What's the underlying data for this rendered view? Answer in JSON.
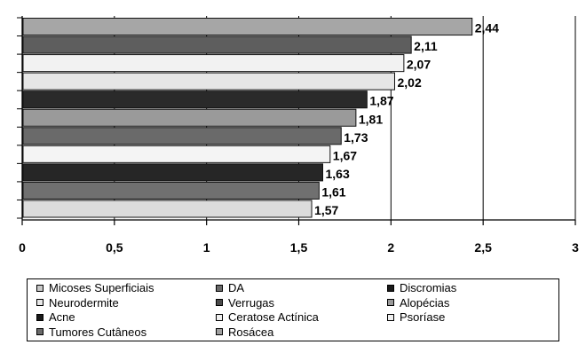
{
  "chart_data": {
    "type": "bar",
    "orientation": "horizontal",
    "xlim": [
      0,
      3
    ],
    "x_tick_labels": [
      "0",
      "0,5",
      "1",
      "1,5",
      "2",
      "2,5",
      "3"
    ],
    "grid": "vertical",
    "legend_position": "bottom",
    "series": [
      {
        "name": "Micoses Superficiais",
        "value": 2.44,
        "label": "2,44",
        "color": "#a6a6a6"
      },
      {
        "name": "DA",
        "value": 2.11,
        "label": "2,11",
        "color": "#5e5e5e"
      },
      {
        "name": "Discromias",
        "value": 2.07,
        "label": "2,07",
        "color": "#f2f2f2"
      },
      {
        "name": "Neurodermite",
        "value": 2.02,
        "label": "2,02",
        "color": "#e6e6e6"
      },
      {
        "name": "Verrugas",
        "value": 1.87,
        "label": "1,87",
        "color": "#2a2a2a"
      },
      {
        "name": "Alopécias",
        "value": 1.81,
        "label": "1,81",
        "color": "#9a9a9a"
      },
      {
        "name": "Acne",
        "value": 1.73,
        "label": "1,73",
        "color": "#6a6a6a"
      },
      {
        "name": "Ceratose Actínica",
        "value": 1.67,
        "label": "1,67",
        "color": "#f4f4f4"
      },
      {
        "name": "Psoríase",
        "value": 1.63,
        "label": "1,63",
        "color": "#262626"
      },
      {
        "name": "Tumores Cutâneos",
        "value": 1.61,
        "label": "1,61",
        "color": "#707070"
      },
      {
        "name": "Rosácea",
        "value": 1.57,
        "label": "1,57",
        "color": "#dcdcdc"
      }
    ],
    "legend": [
      {
        "label": "Micoses Superficiais",
        "color": "#c8c8c8"
      },
      {
        "label": "DA",
        "color": "#6a6a6a"
      },
      {
        "label": "Discromias",
        "color": "#1a1a1a"
      },
      {
        "label": "Neurodermite",
        "color": "#e8e8e8"
      },
      {
        "label": "Verrugas",
        "color": "#4a4a4a"
      },
      {
        "label": "Alopécias",
        "color": "#9a9a9a"
      },
      {
        "label": "Acne",
        "color": "#1a1a1a"
      },
      {
        "label": "Ceratose Actínica",
        "color": "#f0f0f0"
      },
      {
        "label": "Psoríase",
        "color": "#f0f0f0"
      },
      {
        "label": "Tumores Cutâneos",
        "color": "#6a6a6a"
      },
      {
        "label": "Rosácea",
        "color": "#a0a0a0"
      }
    ]
  }
}
